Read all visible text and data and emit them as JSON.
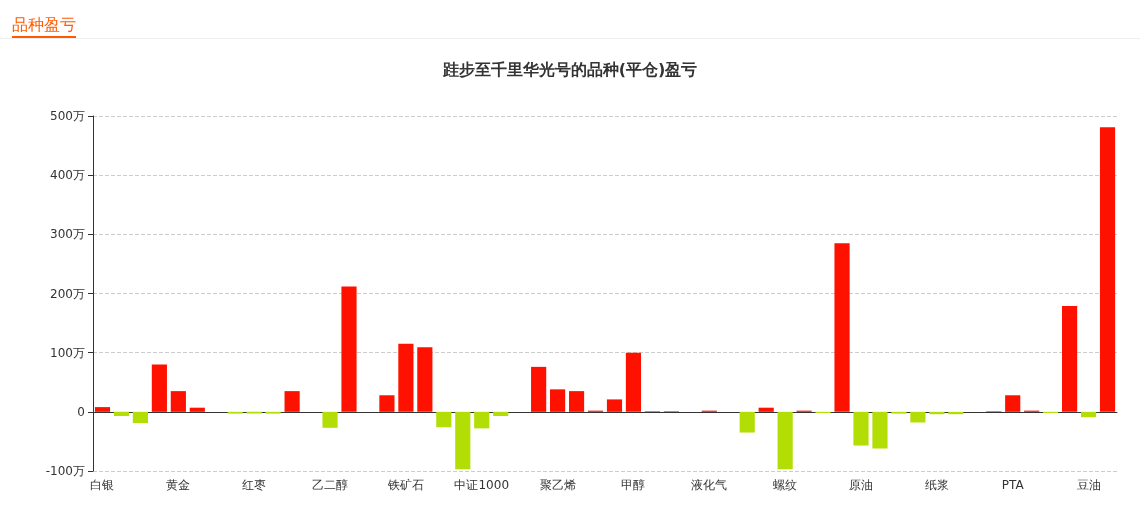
{
  "chart_data": {
    "type": "bar",
    "title": "跬步至千里华光号的品种(平仓)盈亏",
    "annotations": [
      "品种盈亏"
    ],
    "categories": [
      "白银",
      null,
      null,
      null,
      "黄金",
      null,
      null,
      null,
      "红枣",
      null,
      null,
      null,
      "乙二醇",
      null,
      null,
      null,
      "铁矿石",
      null,
      null,
      null,
      "中证1000",
      null,
      null,
      null,
      "聚乙烯",
      null,
      null,
      null,
      "甲醇",
      null,
      null,
      null,
      "液化气",
      null,
      null,
      null,
      "螺纹",
      null,
      null,
      null,
      "原油",
      null,
      null,
      null,
      "纸浆",
      null,
      null,
      null,
      "PTA",
      null,
      null,
      null,
      "豆油",
      null
    ],
    "values": [
      8,
      -7,
      -19,
      80,
      35,
      7,
      0,
      -3,
      -3,
      -3,
      35,
      0,
      -27,
      212,
      0,
      28,
      115,
      109,
      -26,
      -97,
      -28,
      -7,
      null,
      76,
      38,
      35,
      2,
      21,
      100,
      1,
      1,
      null,
      2,
      null,
      -35,
      7,
      -97,
      2,
      -2,
      285,
      -57,
      -62,
      -3,
      -18,
      -4,
      -4,
      0,
      1,
      28,
      2,
      -2,
      179,
      -9,
      481
    ],
    "colors": [
      "#ff1100",
      "#b2de06",
      "#b2de06",
      "#ff1100",
      "#ff1100",
      "#ff1100",
      "#ff1100",
      "#b2de06",
      "#b2de06",
      "#b2de06",
      "#ff1100",
      "#ff1100",
      "#b2de06",
      "#ff1100",
      "#ff1100",
      "#ff1100",
      "#ff1100",
      "#ff1100",
      "#b2de06",
      "#b2de06",
      "#b2de06",
      "#b2de06",
      "#b2de06",
      "#ff1100",
      "#ff1100",
      "#ff1100",
      "#ff1100",
      "#ff1100",
      "#ff1100",
      "#ff1100",
      "#ff1100",
      "#b2de06",
      "#ff1100",
      "#b2de06",
      "#b2de06",
      "#ff1100",
      "#b2de06",
      "#ff1100",
      "#b2de06",
      "#ff1100",
      "#b2de06",
      "#b2de06",
      "#b2de06",
      "#b2de06",
      "#b2de06",
      "#b2de06",
      "#ff1100",
      "#ff1100",
      "#ff1100",
      "#ff1100",
      "#b2de06",
      "#ff1100",
      "#b2de06",
      "#ff1100"
    ],
    "ylim": [
      -100,
      500
    ],
    "yticks": [
      {
        "value": -100,
        "label": "-100万"
      },
      {
        "value": 0,
        "label": "0"
      },
      {
        "value": 100,
        "label": "100万"
      },
      {
        "value": 200,
        "label": "200万"
      },
      {
        "value": 300,
        "label": "300万"
      },
      {
        "value": 400,
        "label": "400万"
      },
      {
        "value": 500,
        "label": "500万"
      }
    ],
    "grid": "y"
  }
}
